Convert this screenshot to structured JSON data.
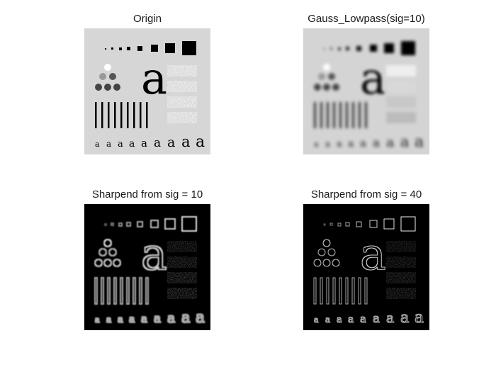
{
  "panels": [
    {
      "title": "Origin"
    },
    {
      "title": "Gauss_Lowpass(sig=10)"
    },
    {
      "title": "Sharpend from sig = 10"
    },
    {
      "title": "Sharpend from sig = 40"
    }
  ],
  "test_pattern": {
    "large_letter": "a",
    "small_letter": "a"
  },
  "colors": {
    "origin_bg": "#d6d6d6",
    "blur_bg": "#d4d4d4",
    "sharp_bg": "#000000"
  }
}
